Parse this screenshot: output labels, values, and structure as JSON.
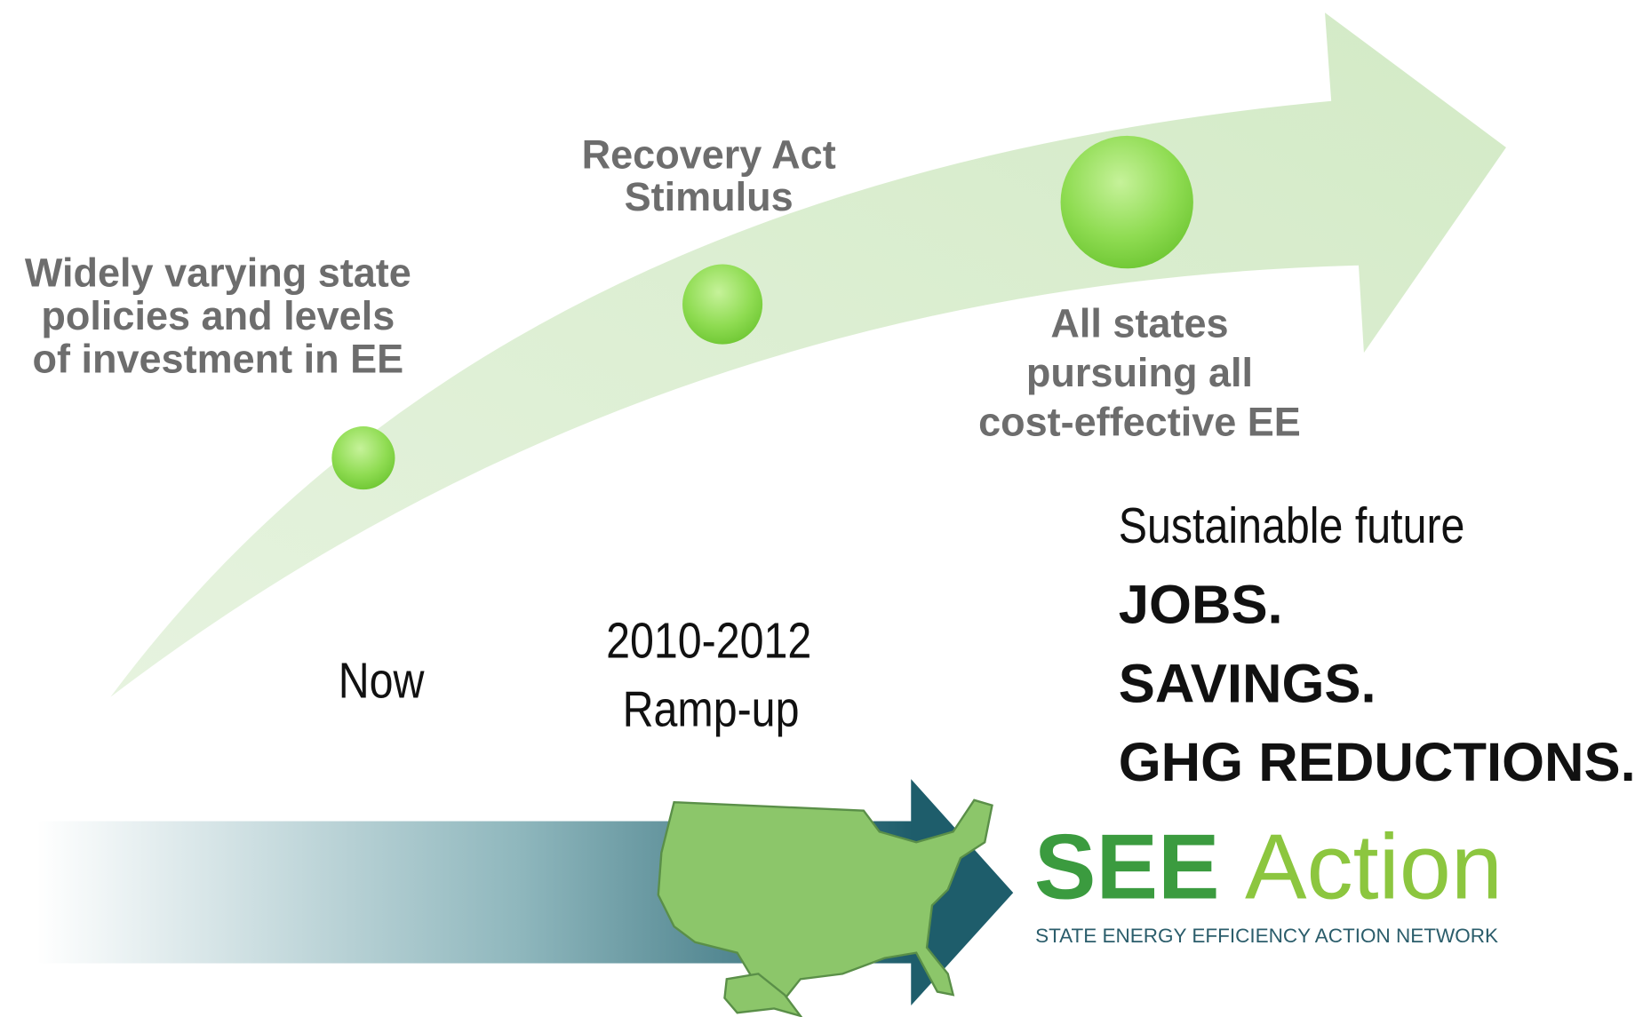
{
  "milestones": [
    {
      "lines": [
        "Widely varying state",
        "policies and levels",
        "of investment in EE"
      ]
    },
    {
      "lines": [
        "Recovery Act",
        "Stimulus"
      ]
    },
    {
      "lines": [
        "All states",
        "pursuing all",
        "cost-effective EE"
      ]
    }
  ],
  "timeline": {
    "now": "Now",
    "rampup": [
      "2010-2012",
      "Ramp-up"
    ]
  },
  "outcomes": [
    "Sustainable future",
    "JOBS.",
    "SAVINGS.",
    "GHG REDUCTIONS."
  ],
  "logo": {
    "see": "SEE",
    "action": "Action",
    "tagline": "STATE ENERGY EFFICIENCY ACTION NETWORK"
  }
}
